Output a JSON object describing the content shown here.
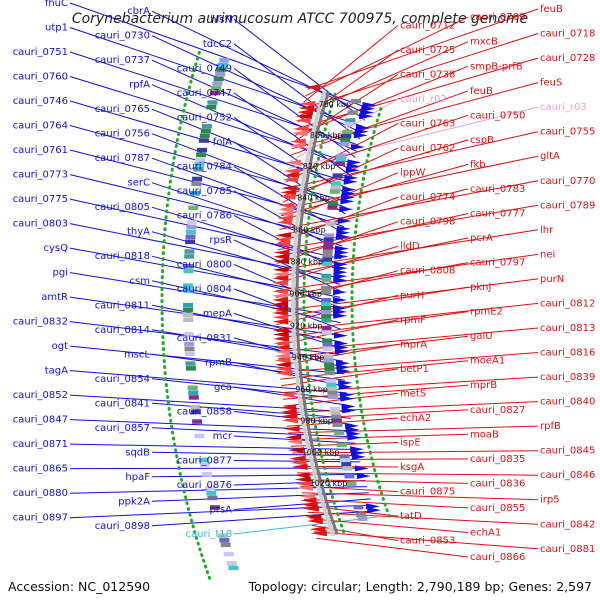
{
  "title": "Corynebacterium aurimucosum ATCC 700975, complete genome",
  "footer": {
    "accession": "Accession: NC_012590",
    "topology": "Topology: circular; Length: 2,790,189 bp; Genes: 2,597"
  },
  "colors": {
    "forward": "#1010dd",
    "reverse": "#e01010",
    "trna": "#33bbdd",
    "rrna": "#f0a0d0",
    "backbone": "#999999",
    "gc_dots": "#22aa22"
  },
  "kbp_ticks": [
    "780 kbp",
    "800 kbp",
    "820 kbp",
    "840 kbp",
    "860 kbp",
    "880 kbp",
    "900 kbp",
    "920 kbp",
    "940 kbp",
    "960 kbp",
    "980 kbp",
    "1000 kbp",
    "1020 kbp"
  ],
  "left_labels": [
    {
      "text": "fhuC",
      "type": "forward"
    },
    {
      "text": "cbrA",
      "type": "forward"
    },
    {
      "text": "hisN",
      "type": "forward"
    },
    {
      "text": "utp1",
      "type": "forward"
    },
    {
      "text": "cauri_0730",
      "type": "forward"
    },
    {
      "text": "tdcC2",
      "type": "forward"
    },
    {
      "text": "cauri_0751",
      "type": "forward"
    },
    {
      "text": "cauri_0737",
      "type": "forward"
    },
    {
      "text": "cauri_0749",
      "type": "forward"
    },
    {
      "text": "cauri_0760",
      "type": "forward"
    },
    {
      "text": "rpfA",
      "type": "forward"
    },
    {
      "text": "cauri_0747",
      "type": "forward"
    },
    {
      "text": "cauri_0746",
      "type": "forward"
    },
    {
      "text": "cauri_0765",
      "type": "forward"
    },
    {
      "text": "cauri_0752",
      "type": "forward"
    },
    {
      "text": "cauri_0764",
      "type": "forward"
    },
    {
      "text": "cauri_0756",
      "type": "forward"
    },
    {
      "text": "folA",
      "type": "forward"
    },
    {
      "text": "cauri_0761",
      "type": "forward"
    },
    {
      "text": "cauri_0787",
      "type": "forward"
    },
    {
      "text": "cauri_0784",
      "type": "forward"
    },
    {
      "text": "cauri_0773",
      "type": "forward"
    },
    {
      "text": "serC",
      "type": "forward"
    },
    {
      "text": "cauri_0785",
      "type": "forward"
    },
    {
      "text": "cauri_0775",
      "type": "forward"
    },
    {
      "text": "cauri_0805",
      "type": "forward"
    },
    {
      "text": "cauri_0786",
      "type": "forward"
    },
    {
      "text": "cauri_0803",
      "type": "forward"
    },
    {
      "text": "thyA",
      "type": "forward"
    },
    {
      "text": "rpsR",
      "type": "forward"
    },
    {
      "text": "cysQ",
      "type": "forward"
    },
    {
      "text": "cauri_0818",
      "type": "forward"
    },
    {
      "text": "cauri_0800",
      "type": "forward"
    },
    {
      "text": "pgi",
      "type": "forward"
    },
    {
      "text": "csm",
      "type": "forward"
    },
    {
      "text": "cauri_0804",
      "type": "forward"
    },
    {
      "text": "amtR",
      "type": "forward"
    },
    {
      "text": "cauri_0811",
      "type": "forward"
    },
    {
      "text": "mepA",
      "type": "forward"
    },
    {
      "text": "cauri_0832",
      "type": "forward"
    },
    {
      "text": "cauri_0814",
      "type": "forward"
    },
    {
      "text": "cauri_0831",
      "type": "forward"
    },
    {
      "text": "ogt",
      "type": "forward"
    },
    {
      "text": "mscL",
      "type": "forward"
    },
    {
      "text": "rpmB",
      "type": "forward"
    },
    {
      "text": "tagA",
      "type": "forward"
    },
    {
      "text": "cauri_0854",
      "type": "forward"
    },
    {
      "text": "gca",
      "type": "forward"
    },
    {
      "text": "cauri_0852",
      "type": "forward"
    },
    {
      "text": "cauri_0841",
      "type": "forward"
    },
    {
      "text": "cauri_0858",
      "type": "forward"
    },
    {
      "text": "cauri_0847",
      "type": "forward"
    },
    {
      "text": "cauri_0857",
      "type": "forward"
    },
    {
      "text": "mcr",
      "type": "forward"
    },
    {
      "text": "cauri_0871",
      "type": "forward"
    },
    {
      "text": "sqdB",
      "type": "forward"
    },
    {
      "text": "cauri_0877",
      "type": "forward"
    },
    {
      "text": "cauri_0865",
      "type": "forward"
    },
    {
      "text": "hpaF",
      "type": "forward"
    },
    {
      "text": "cauri_0876",
      "type": "forward"
    },
    {
      "text": "cauri_0880",
      "type": "forward"
    },
    {
      "text": "ppk2A",
      "type": "forward"
    },
    {
      "text": "prsA",
      "type": "forward"
    },
    {
      "text": "cauri_0897",
      "type": "forward"
    },
    {
      "text": "cauri_0898",
      "type": "forward"
    },
    {
      "text": "cauri_t18",
      "type": "trna"
    }
  ],
  "right_labels": [
    {
      "text": "feuB",
      "type": "reverse"
    },
    {
      "text": "cauri_0709",
      "type": "reverse"
    },
    {
      "text": "cauri_0712",
      "type": "reverse"
    },
    {
      "text": "cauri_0718",
      "type": "reverse"
    },
    {
      "text": "mxcB",
      "type": "reverse"
    },
    {
      "text": "cauri_0725",
      "type": "reverse"
    },
    {
      "text": "cauri_0728",
      "type": "reverse"
    },
    {
      "text": "smpB-prfB",
      "type": "reverse"
    },
    {
      "text": "cauri_0738",
      "type": "reverse"
    },
    {
      "text": "feuS",
      "type": "reverse"
    },
    {
      "text": "feuB",
      "type": "reverse"
    },
    {
      "text": "cauri_r02",
      "type": "rrna"
    },
    {
      "text": "cauri_r03",
      "type": "rrna"
    },
    {
      "text": "cauri_0750",
      "type": "reverse"
    },
    {
      "text": "cauri_0763",
      "type": "reverse"
    },
    {
      "text": "cauri_0755",
      "type": "reverse"
    },
    {
      "text": "cspB",
      "type": "reverse"
    },
    {
      "text": "cauri_0762",
      "type": "reverse"
    },
    {
      "text": "gltA",
      "type": "reverse"
    },
    {
      "text": "fkb",
      "type": "reverse"
    },
    {
      "text": "lppW",
      "type": "reverse"
    },
    {
      "text": "cauri_0770",
      "type": "reverse"
    },
    {
      "text": "cauri_0783",
      "type": "reverse"
    },
    {
      "text": "cauri_0774",
      "type": "reverse"
    },
    {
      "text": "cauri_0789",
      "type": "reverse"
    },
    {
      "text": "cauri_0777",
      "type": "reverse"
    },
    {
      "text": "cauri_0798",
      "type": "reverse"
    },
    {
      "text": "lhr",
      "type": "reverse"
    },
    {
      "text": "pcrA",
      "type": "reverse"
    },
    {
      "text": "lldD",
      "type": "reverse"
    },
    {
      "text": "nei",
      "type": "reverse"
    },
    {
      "text": "cauri_0797",
      "type": "reverse"
    },
    {
      "text": "cauri_0808",
      "type": "reverse"
    },
    {
      "text": "purN",
      "type": "reverse"
    },
    {
      "text": "pknJ",
      "type": "reverse"
    },
    {
      "text": "purH",
      "type": "reverse"
    },
    {
      "text": "cauri_0812",
      "type": "reverse"
    },
    {
      "text": "rpmE2",
      "type": "reverse"
    },
    {
      "text": "rpmF",
      "type": "reverse"
    },
    {
      "text": "cauri_0813",
      "type": "reverse"
    },
    {
      "text": "galU",
      "type": "reverse"
    },
    {
      "text": "mprA",
      "type": "reverse"
    },
    {
      "text": "cauri_0816",
      "type": "reverse"
    },
    {
      "text": "moeA1",
      "type": "reverse"
    },
    {
      "text": "betP1",
      "type": "reverse"
    },
    {
      "text": "cauri_0839",
      "type": "reverse"
    },
    {
      "text": "mprB",
      "type": "reverse"
    },
    {
      "text": "metS",
      "type": "reverse"
    },
    {
      "text": "cauri_0840",
      "type": "reverse"
    },
    {
      "text": "cauri_0827",
      "type": "reverse"
    },
    {
      "text": "echA2",
      "type": "reverse"
    },
    {
      "text": "rpfB",
      "type": "reverse"
    },
    {
      "text": "moaB",
      "type": "reverse"
    },
    {
      "text": "ispE",
      "type": "reverse"
    },
    {
      "text": "cauri_0845",
      "type": "reverse"
    },
    {
      "text": "cauri_0835",
      "type": "reverse"
    },
    {
      "text": "ksgA",
      "type": "reverse"
    },
    {
      "text": "cauri_0846",
      "type": "reverse"
    },
    {
      "text": "cauri_0836",
      "type": "reverse"
    },
    {
      "text": "cauri_0875",
      "type": "reverse"
    },
    {
      "text": "irp5",
      "type": "reverse"
    },
    {
      "text": "cauri_0855",
      "type": "reverse"
    },
    {
      "text": "tatD",
      "type": "reverse"
    },
    {
      "text": "cauri_0842",
      "type": "reverse"
    },
    {
      "text": "echA1",
      "type": "reverse"
    },
    {
      "text": "cauri_0853",
      "type": "reverse"
    },
    {
      "text": "cauri_0881",
      "type": "reverse"
    },
    {
      "text": "cauri_0866",
      "type": "reverse"
    }
  ]
}
